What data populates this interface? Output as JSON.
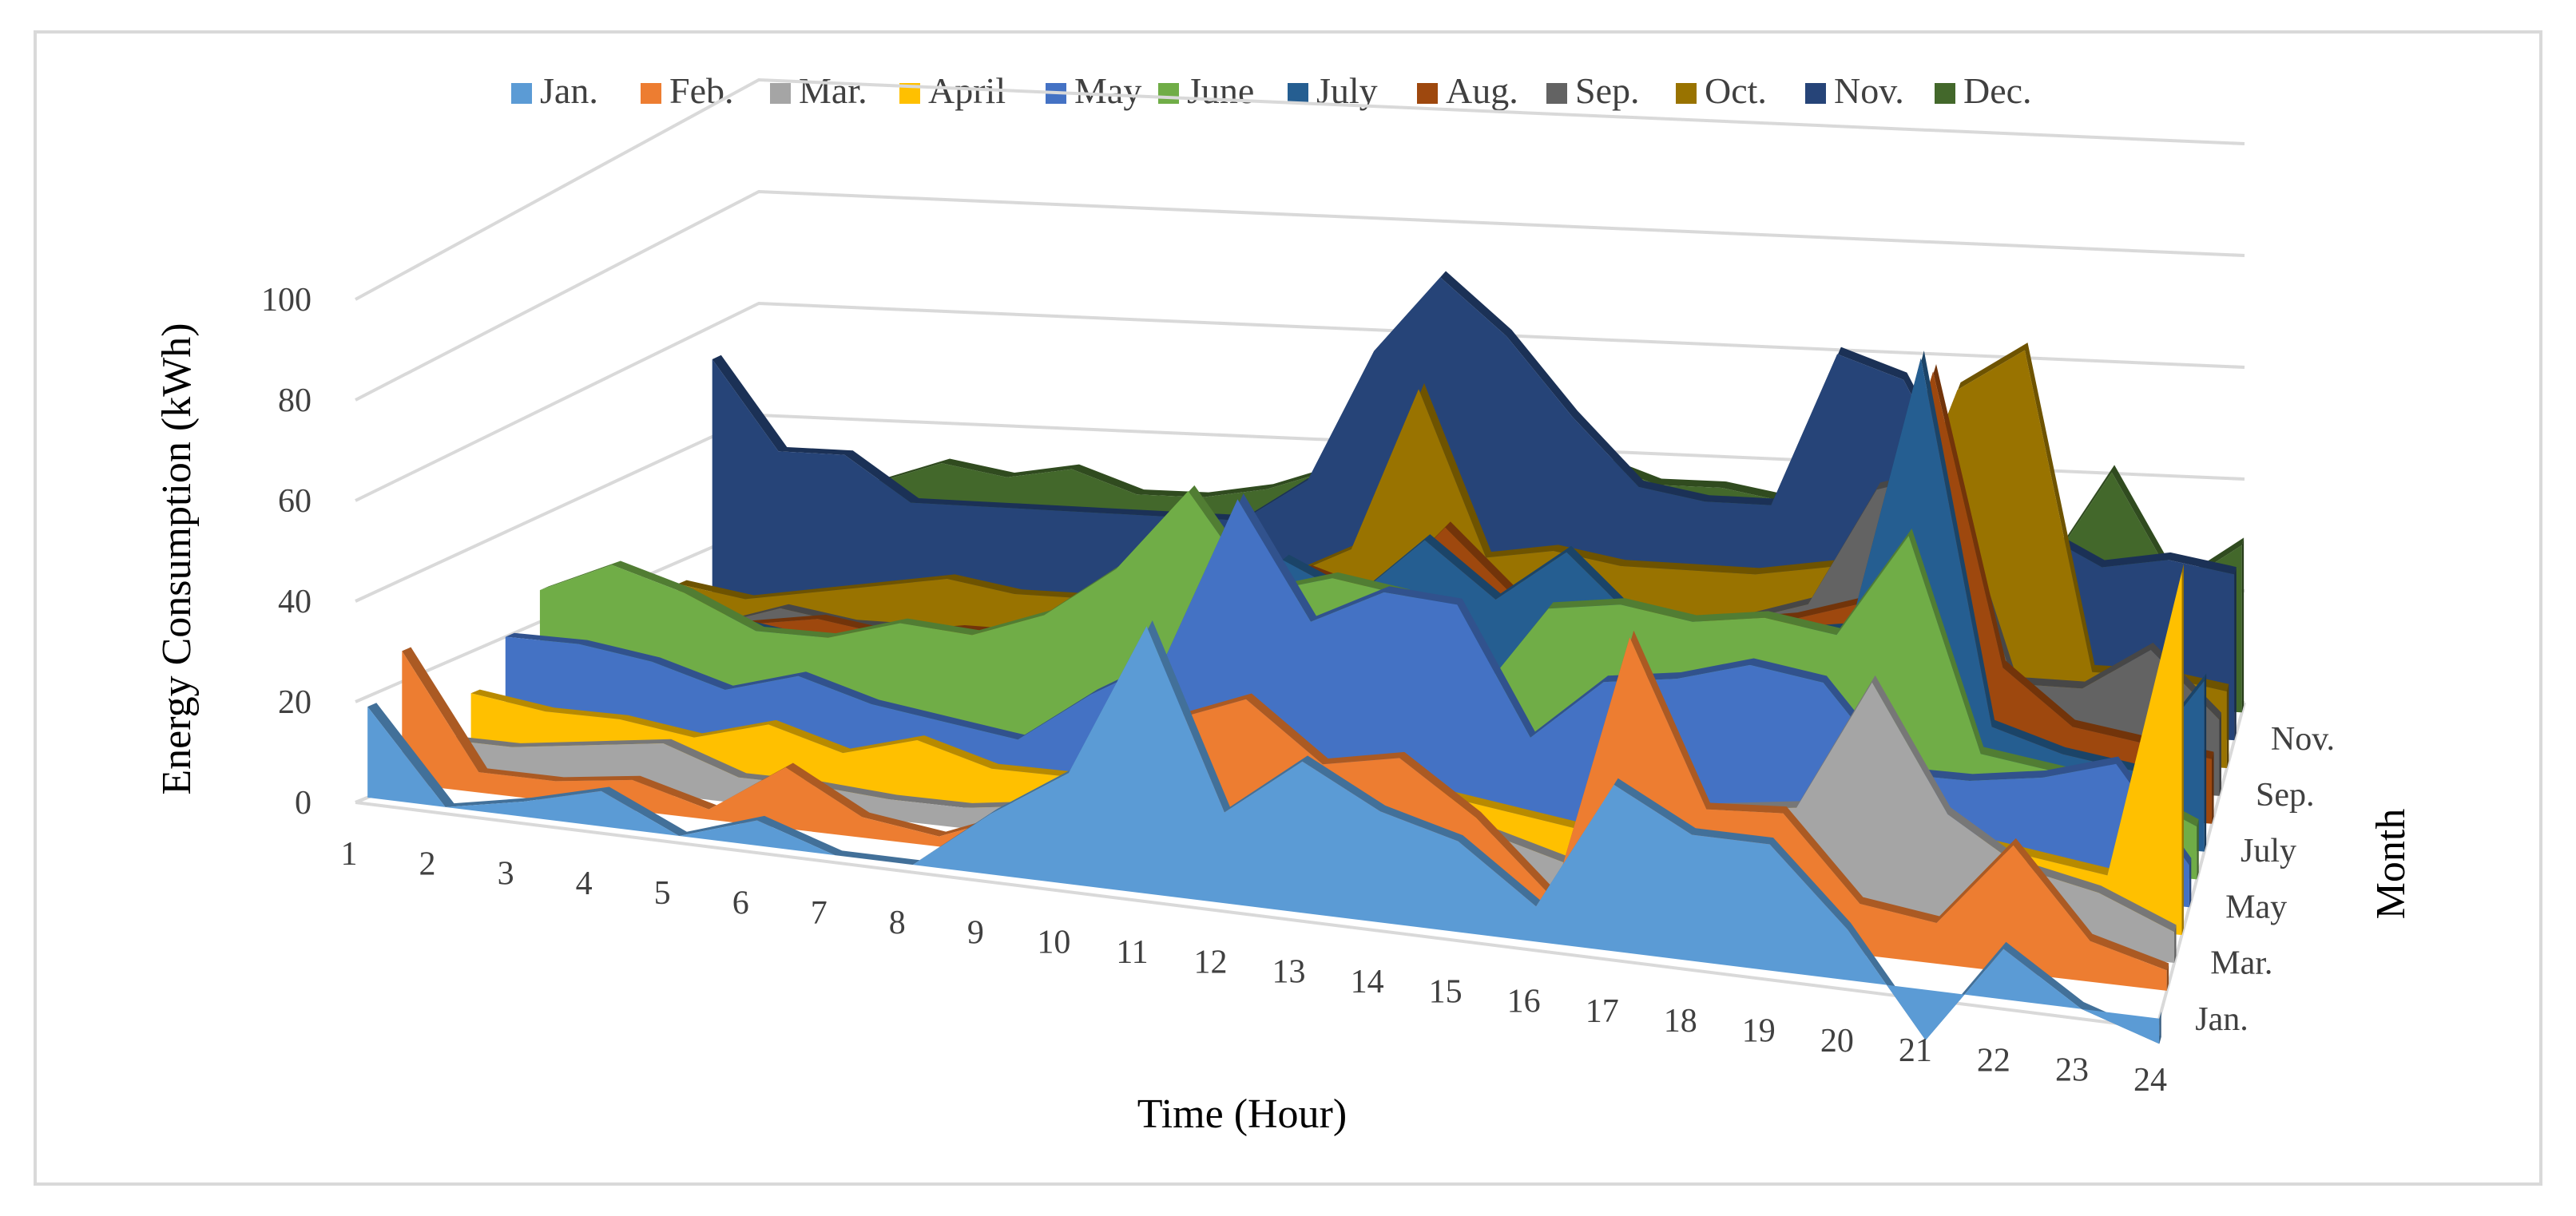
{
  "chart_data": {
    "type": "area",
    "variant": "3d-area",
    "title": "",
    "xlabel": "Time (Hour)",
    "ylabel": "Energy Consumption (kWh)",
    "zlabel": "Month",
    "ylim": [
      0,
      100
    ],
    "y_ticks": [
      "0",
      "20",
      "40",
      "60",
      "80",
      "100"
    ],
    "x": [
      "1",
      "2",
      "3",
      "4",
      "5",
      "6",
      "7",
      "8",
      "9",
      "10",
      "11",
      "12",
      "13",
      "14",
      "15",
      "16",
      "17",
      "18",
      "19",
      "20",
      "21",
      "22",
      "23",
      "24"
    ],
    "z_ticks": [
      "Jan.",
      "Mar.",
      "May",
      "July",
      "Sep.",
      "Nov."
    ],
    "legend_position": "top",
    "grid": true,
    "series": [
      {
        "name": "Jan.",
        "color": "#5B9BD5",
        "values": [
          18,
          0,
          3,
          7,
          0,
          5,
          0,
          0,
          12,
          22,
          53,
          18,
          30,
          22,
          18,
          7,
          33,
          25,
          25,
          10,
          -10,
          10,
          0,
          -5
        ]
      },
      {
        "name": "Feb.",
        "color": "#ED7D31",
        "values": [
          26,
          4,
          4,
          6,
          2,
          12,
          4,
          2,
          8,
          16,
          30,
          36,
          25,
          28,
          18,
          4,
          57,
          25,
          26,
          10,
          8,
          25,
          8,
          4
        ]
      },
      {
        "name": "Mar.",
        "color": "#A5A5A5",
        "values": [
          6,
          6,
          8,
          10,
          5,
          5,
          4,
          4,
          6,
          10,
          14,
          14,
          16,
          14,
          10,
          6,
          18,
          20,
          22,
          48,
          24,
          15,
          12,
          6
        ]
      },
      {
        "name": "April",
        "color": "#FFC000",
        "values": [
          12,
          10,
          10,
          8,
          12,
          8,
          12,
          8,
          8,
          10,
          14,
          12,
          14,
          12,
          10,
          8,
          14,
          14,
          16,
          20,
          14,
          12,
          10,
          70
        ]
      },
      {
        "name": "May",
        "color": "#4472C4",
        "values": [
          20,
          20,
          18,
          14,
          18,
          14,
          12,
          10,
          20,
          28,
          60,
          38,
          45,
          44,
          20,
          32,
          34,
          38,
          36,
          20,
          20,
          22,
          26,
          8
        ]
      },
      {
        "name": "June",
        "color": "#70AD47",
        "values": [
          26,
          32,
          28,
          22,
          22,
          26,
          25,
          30,
          40,
          56,
          38,
          42,
          40,
          22,
          40,
          42,
          40,
          42,
          40,
          60,
          20,
          18,
          16,
          10
        ]
      },
      {
        "name": "July",
        "color": "#255E91",
        "values": [
          20,
          22,
          20,
          18,
          16,
          18,
          16,
          18,
          22,
          28,
          40,
          34,
          46,
          36,
          46,
          34,
          34,
          34,
          36,
          88,
          20,
          16,
          14,
          32
        ]
      },
      {
        "name": "Aug.",
        "color": "#9E480E",
        "values": [
          14,
          14,
          16,
          18,
          16,
          18,
          18,
          18,
          20,
          24,
          34,
          30,
          44,
          32,
          34,
          30,
          30,
          32,
          36,
          80,
          26,
          16,
          14,
          12
        ]
      },
      {
        "name": "Sep.",
        "color": "#636363",
        "values": [
          12,
          12,
          16,
          14,
          14,
          14,
          14,
          16,
          18,
          20,
          24,
          24,
          26,
          24,
          22,
          22,
          26,
          30,
          52,
          56,
          18,
          18,
          26,
          14
        ]
      },
      {
        "name": "Oct.",
        "color": "#997300",
        "values": [
          16,
          14,
          16,
          18,
          20,
          18,
          18,
          22,
          22,
          24,
          30,
          60,
          30,
          32,
          30,
          30,
          30,
          32,
          34,
          66,
          74,
          16,
          16,
          14
        ]
      },
      {
        "name": "Nov.",
        "color": "#264478",
        "values": [
          54,
          38,
          38,
          30,
          30,
          30,
          30,
          30,
          30,
          38,
          62,
          76,
          66,
          52,
          40,
          38,
          38,
          66,
          62,
          40,
          36,
          30,
          32,
          30
        ]
      },
      {
        "name": "Dec.",
        "color": "#43682B",
        "values": [
          28,
          26,
          30,
          34,
          32,
          34,
          30,
          30,
          32,
          36,
          40,
          44,
          40,
          40,
          36,
          36,
          34,
          40,
          42,
          44,
          24,
          42,
          22,
          30
        ]
      }
    ]
  }
}
